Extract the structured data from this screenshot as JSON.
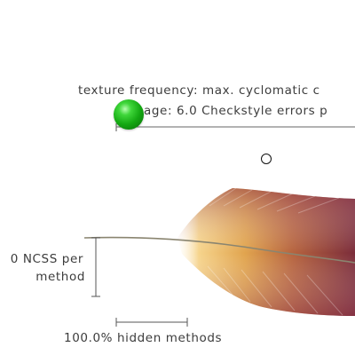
{
  "annotations": {
    "texture_frequency": "texture frequency: max. cyclomatic c",
    "average_checkstyle": "age: 6.0 Checkstyle errors p",
    "ncss_line1": "0 NCSS per",
    "ncss_line2": "method",
    "hidden_methods": "100.0% hidden methods"
  },
  "colors": {
    "sphere": "#14a812",
    "feather_light": "#f3c878",
    "feather_mid": "#c98a3a",
    "feather_dark": "#7a2a3a",
    "shaft": "#8a8570",
    "scale_lines": "#555555"
  },
  "icons": {
    "sphere": "green-sphere-icon",
    "cursor": "cursor-ring-icon"
  }
}
